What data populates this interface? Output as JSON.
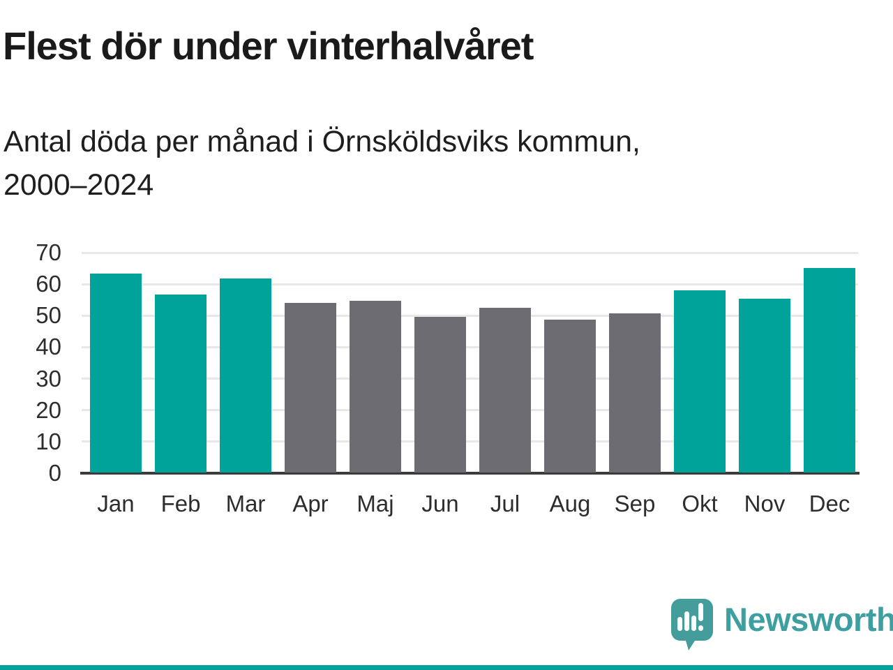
{
  "header": {
    "title": "Flest dör under vinterhalvåret",
    "subtitle_line1": "Antal döda per månad i Örnsköldsviks kommun,",
    "subtitle_line2": "2000–2024"
  },
  "chart_data": {
    "type": "bar",
    "title": "Flest dör under vinterhalvåret",
    "subtitle": "Antal döda per månad i Örnsköldsviks kommun, 2000–2024",
    "categories": [
      "Jan",
      "Feb",
      "Mar",
      "Apr",
      "Maj",
      "Jun",
      "Jul",
      "Aug",
      "Sep",
      "Okt",
      "Nov",
      "Dec"
    ],
    "values": [
      63.1,
      56.5,
      61.5,
      53.8,
      54.5,
      49.5,
      52.2,
      48.6,
      50.6,
      57.8,
      55.2,
      65.0
    ],
    "bar_palette": [
      "highlight",
      "highlight",
      "highlight",
      "base",
      "base",
      "base",
      "base",
      "base",
      "base",
      "highlight",
      "highlight",
      "highlight"
    ],
    "highlight_color": "#00a39a",
    "base_color": "#6d6c72",
    "xlabel": "",
    "ylabel": "",
    "ylim": [
      0,
      70
    ],
    "yticks": [
      0,
      10,
      20,
      30,
      40,
      50,
      60,
      70
    ],
    "grid": true,
    "legend": "none"
  },
  "branding": {
    "wordmark": "Newsworthy",
    "logo_icon": "newsworthy-speech-bubble-chart-icon",
    "logo_color": "#459d9b",
    "wordmark_color": "#3d9fa0"
  },
  "colors": {
    "background": "#ffffff",
    "accent": "#00a39a",
    "bar_gray": "#6d6c72",
    "gridline": "#e8e8e8",
    "axis_line": "#3b3b3b",
    "title_text": "#1a1a1a",
    "tick_label": "#2d2d2d",
    "footer_bar": "#00a39a"
  }
}
